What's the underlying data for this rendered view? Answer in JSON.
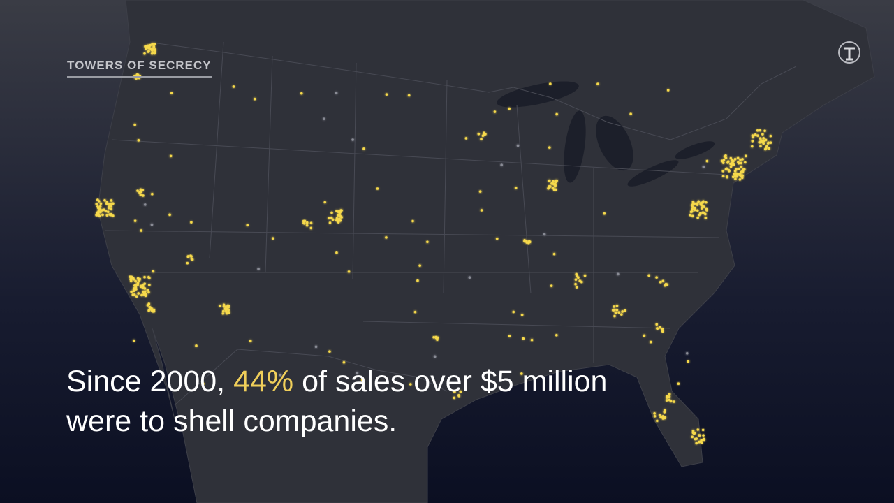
{
  "header": {
    "title": "TOWERS OF SECRECY"
  },
  "caption": {
    "before": "Since 2000, ",
    "highlight": "44%",
    "after": " of sales over $5 million",
    "line2": "were to shell companies."
  }
}
